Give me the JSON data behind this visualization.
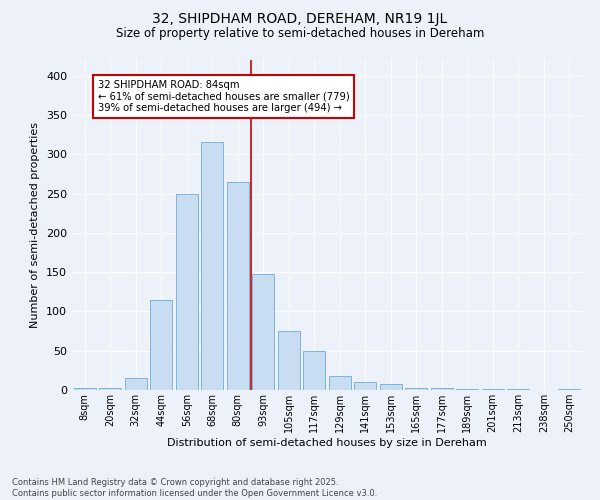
{
  "title": "32, SHIPDHAM ROAD, DEREHAM, NR19 1JL",
  "subtitle": "Size of property relative to semi-detached houses in Dereham",
  "xlabel": "Distribution of semi-detached houses by size in Dereham",
  "ylabel": "Number of semi-detached properties",
  "categories": [
    "8sqm",
    "20sqm",
    "32sqm",
    "44sqm",
    "56sqm",
    "68sqm",
    "80sqm",
    "93sqm",
    "105sqm",
    "117sqm",
    "129sqm",
    "141sqm",
    "153sqm",
    "165sqm",
    "177sqm",
    "189sqm",
    "201sqm",
    "213sqm",
    "238sqm",
    "250sqm"
  ],
  "values": [
    2,
    2,
    15,
    115,
    250,
    315,
    265,
    148,
    75,
    50,
    18,
    10,
    8,
    3,
    3,
    1,
    1,
    1,
    0,
    1
  ],
  "bar_color": "#c9ddf2",
  "bar_edge_color": "#6aaed6",
  "background_color": "#edf2fa",
  "grid_color": "#ffffff",
  "vline_x": 6.5,
  "vline_label": "32 SHIPDHAM ROAD: 84sqm",
  "annotation_line1": "← 61% of semi-detached houses are smaller (779)",
  "annotation_line2": "39% of semi-detached houses are larger (494) →",
  "annotation_box_facecolor": "#ffffff",
  "annotation_box_edgecolor": "#cc0000",
  "ylim": [
    0,
    420
  ],
  "yticks": [
    0,
    50,
    100,
    150,
    200,
    250,
    300,
    350,
    400
  ],
  "footer_line1": "Contains HM Land Registry data © Crown copyright and database right 2025.",
  "footer_line2": "Contains public sector information licensed under the Open Government Licence v3.0."
}
